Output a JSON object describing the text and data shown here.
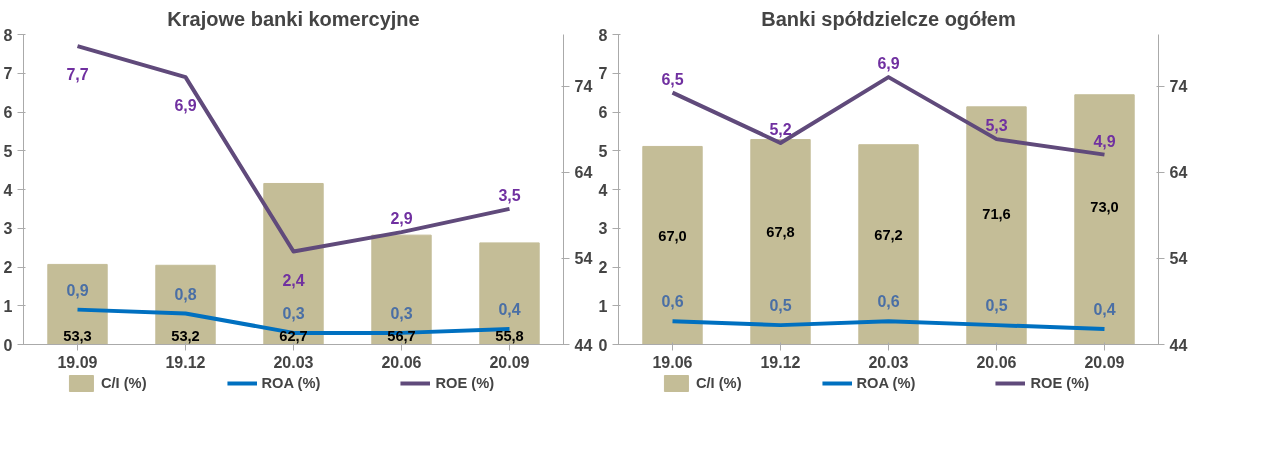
{
  "chart_data": [
    {
      "type": "bar",
      "title": "Krajowe banki komercyjne",
      "categories": [
        "19.09",
        "19.12",
        "20.03",
        "20.06",
        "20.09"
      ],
      "ylim": [
        0,
        8
      ],
      "yticks": [
        0,
        1,
        2,
        3,
        4,
        5,
        6,
        7,
        8
      ],
      "y2lim": [
        44,
        80
      ],
      "y2ticks": [
        44,
        54,
        64,
        74
      ],
      "legend": "bottom",
      "grid": false,
      "series": [
        {
          "name": "C/I (%)",
          "axis": "y2",
          "color": "#c4bd97",
          "values": [
            53.3,
            53.2,
            62.7,
            56.7,
            55.8
          ],
          "value_labels": [
            "53,3",
            "53,2",
            "62,7",
            "56,7",
            "55,8"
          ]
        },
        {
          "name": "ROA (%)",
          "type": "line",
          "color": "#0070c0",
          "values": [
            0.9,
            0.8,
            0.3,
            0.3,
            0.4
          ],
          "value_labels": [
            "0,9",
            "0,8",
            "0,3",
            "0,3",
            "0,4"
          ]
        },
        {
          "name": "ROE (%)",
          "type": "line",
          "color": "#604a7b",
          "values": [
            7.7,
            6.9,
            2.4,
            2.9,
            3.5
          ],
          "value_labels": [
            "7,7",
            "6,9",
            "2,4",
            "2,9",
            "3,5"
          ]
        }
      ]
    },
    {
      "type": "bar",
      "title": "Banki spółdzielcze ogółem",
      "categories": [
        "19.06",
        "19.12",
        "20.03",
        "20.06",
        "20.09"
      ],
      "ylim": [
        0,
        8
      ],
      "yticks": [
        0,
        1,
        2,
        3,
        4,
        5,
        6,
        7,
        8
      ],
      "y2lim": [
        44,
        80
      ],
      "y2ticks": [
        44,
        54,
        64,
        74
      ],
      "legend": "bottom",
      "grid": false,
      "series": [
        {
          "name": "C/I (%)",
          "axis": "y2",
          "color": "#c4bd97",
          "values": [
            67.0,
            67.8,
            67.2,
            71.6,
            73.0
          ],
          "value_labels": [
            "67,0",
            "67,8",
            "67,2",
            "71,6",
            "73,0"
          ]
        },
        {
          "name": "ROA (%)",
          "type": "line",
          "color": "#0070c0",
          "values": [
            0.6,
            0.5,
            0.6,
            0.5,
            0.4
          ],
          "value_labels": [
            "0,6",
            "0,5",
            "0,6",
            "0,5",
            "0,4"
          ]
        },
        {
          "name": "ROE (%)",
          "type": "line",
          "color": "#604a7b",
          "values": [
            6.5,
            5.2,
            6.9,
            5.3,
            4.9
          ],
          "value_labels": [
            "6,5",
            "5,2",
            "6,9",
            "5,3",
            "4,9"
          ]
        }
      ]
    }
  ]
}
